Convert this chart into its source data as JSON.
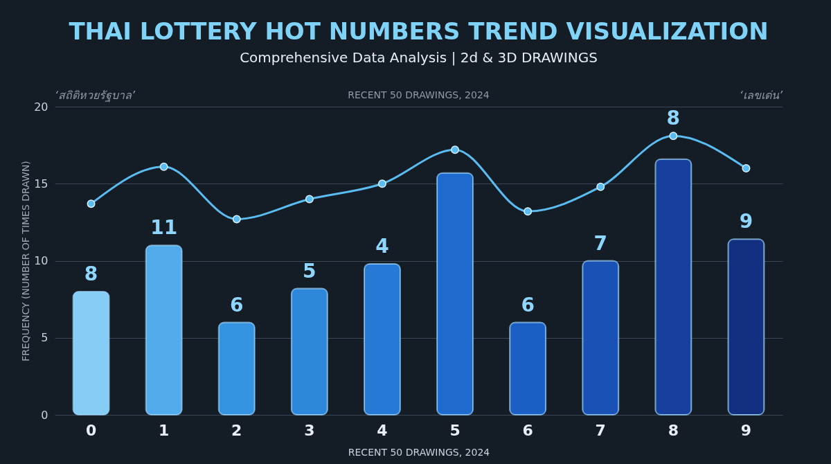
{
  "chart_data": {
    "type": "bar",
    "title": "THAI LOTTERY HOT NUMBERS TREND VISUALIZATION",
    "subtitle": "Comprehensive Data Analysis | 2d & 3D DRAWINGS",
    "xlabel": "RECENT 50 DRAWINGS, 2024",
    "ylabel": "FREQUENCY (NUMBER OF TIMES DRAWN)",
    "categories": [
      "0",
      "1",
      "2",
      "3",
      "4",
      "5",
      "6",
      "7",
      "8",
      "9"
    ],
    "series": [
      {
        "colors": [
          "#86cdf5",
          "#52acec",
          "#3494e2",
          "#2d88dc",
          "#2679d4",
          "#1f6bcd",
          "#1b5ec4",
          "#1a51b4",
          "#163f9e",
          "#132f80"
        ],
        "values": [
          8,
          11,
          6,
          8.2,
          9.8,
          15.7,
          6,
          10,
          16.6,
          11.4
        ]
      },
      {
        "type": "line",
        "color": "#5bbcf2",
        "marker": "circle",
        "values": [
          13.7,
          16.1,
          12.7,
          14,
          15,
          17.2,
          13.2,
          14.8,
          18.1,
          16
        ]
      }
    ],
    "ylim": [
      0,
      20
    ],
    "yticks": [
      0,
      5,
      10,
      15,
      20
    ],
    "grid": "y",
    "annotations": [
      "‘สถิติหวยรัฐบาล’",
      "RECENT 50 DRAWINGS, 2024",
      "‘เลขเด่น’",
      {
        "text": "8",
        "x": "0",
        "y": 8
      },
      {
        "text": "11",
        "x": "1",
        "y": 11
      },
      {
        "text": "6",
        "x": "2",
        "y": 6
      },
      {
        "text": "5",
        "x": "3",
        "y": 8.2
      },
      {
        "text": "4",
        "x": "4",
        "y": 9.8
      },
      {
        "text": "6",
        "x": "6",
        "y": 6
      },
      {
        "text": "7",
        "x": "7",
        "y": 10
      },
      {
        "text": "8",
        "x": "8",
        "y": 18.1
      },
      {
        "text": "9",
        "x": "9",
        "y": 11.4
      }
    ]
  }
}
